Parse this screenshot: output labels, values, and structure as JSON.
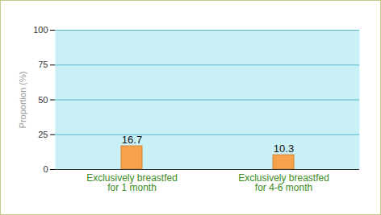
{
  "chart_data": {
    "type": "bar",
    "y_label": "Proportion (%)",
    "categories": [
      "Exclusively breastfed\nfor 1 month",
      "Exclusively breastfed\nfor 4-6 month"
    ],
    "values": [
      16.7,
      10.3
    ],
    "color": "#f5a24a",
    "ylim": [
      0,
      100
    ],
    "yticks": [
      0,
      25,
      50,
      75,
      100
    ],
    "grid": true,
    "data_labels": true
  }
}
